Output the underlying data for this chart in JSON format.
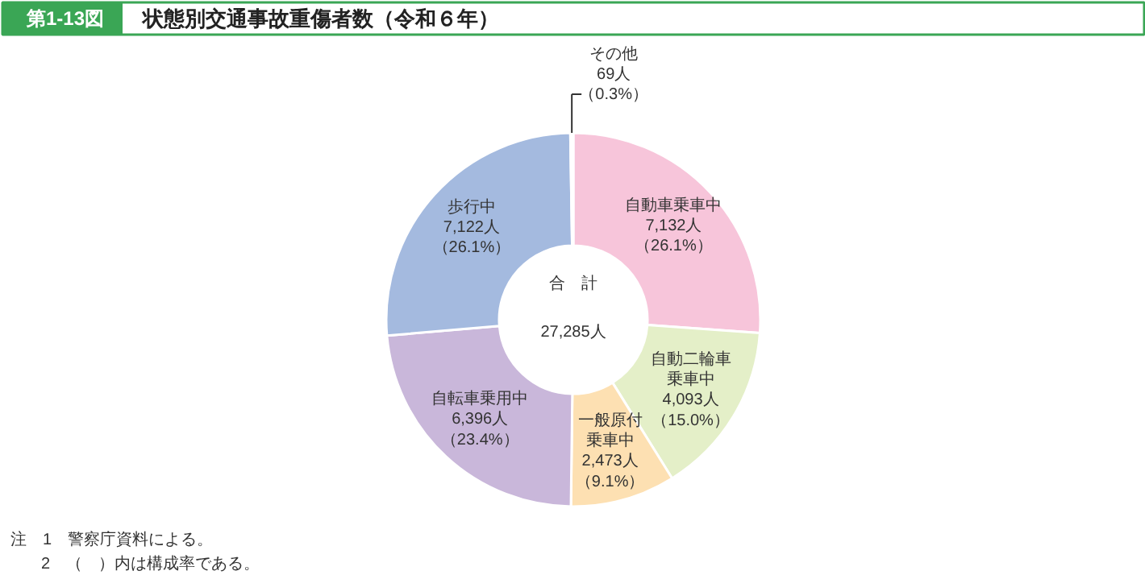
{
  "chart_data": {
    "type": "donut",
    "title": "状態別交通事故重傷者数（令和６年）",
    "categories": [
      "自動車乗車中",
      "自動二輪車乗車中",
      "一般原付乗車中",
      "自転車乗用中",
      "歩行中",
      "その他"
    ],
    "values": [
      7132,
      4093,
      2473,
      6396,
      7122,
      69
    ],
    "value_labels": [
      "7,132人（26.1%）",
      "4,093人（15.0%）",
      "2,473人（9.1%）",
      "6,396人（23.4%）",
      "7,122人（26.1%）",
      "69人（0.3%）"
    ],
    "colors": [
      "#f7c5da",
      "#e4efc8",
      "#fde0b2",
      "#c9b7da",
      "#a4badf",
      "#ffffff"
    ],
    "annotations": [
      "第1-13図",
      "合　計",
      "27,285人",
      "注　1　警察庁資料による。",
      "2　（　）内は構成率である。"
    ]
  }
}
